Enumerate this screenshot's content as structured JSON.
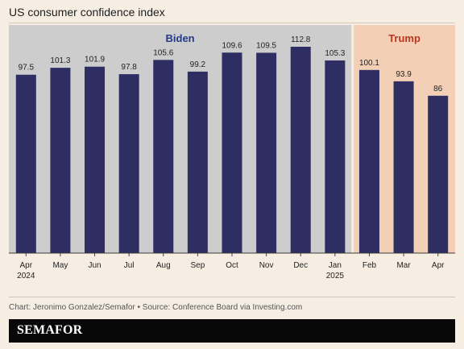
{
  "title": "US consumer confidence index",
  "credit": "Chart: Jeronimo Gonzalez/Semafor • Source: Conference Board via Investing.com",
  "brand": "SEMAFOR",
  "colors": {
    "bar": "#2f2e63",
    "biden_band": "#cdcdcd",
    "trump_band": "#f3cfb6",
    "biden_label": "#233a86",
    "trump_label": "#b8361f",
    "background": "#f6eee3"
  },
  "chart_data": {
    "type": "bar",
    "categories": [
      "Apr",
      "May",
      "Jun",
      "Jul",
      "Aug",
      "Sep",
      "Oct",
      "Nov",
      "Dec",
      "Jan",
      "Feb",
      "Mar",
      "Apr"
    ],
    "category_sublabels": [
      "2024",
      "",
      "",
      "",
      "",
      "",
      "",
      "",
      "",
      "2025",
      "",
      "",
      ""
    ],
    "values": [
      97.5,
      101.3,
      101.9,
      97.8,
      105.6,
      99.2,
      109.6,
      109.5,
      112.8,
      105.3,
      100.1,
      93.9,
      86
    ],
    "value_labels": [
      "97.5",
      "101.3",
      "101.9",
      "97.8",
      "105.6",
      "99.2",
      "109.6",
      "109.5",
      "112.8",
      "105.3",
      "100.1",
      "93.9",
      "86"
    ],
    "ylim": [
      0,
      112.8
    ],
    "grid": false,
    "periods": [
      {
        "name": "Biden",
        "start": 0,
        "end": 9
      },
      {
        "name": "Trump",
        "start": 10,
        "end": 12
      }
    ],
    "title": "",
    "xlabel": "",
    "ylabel": ""
  }
}
